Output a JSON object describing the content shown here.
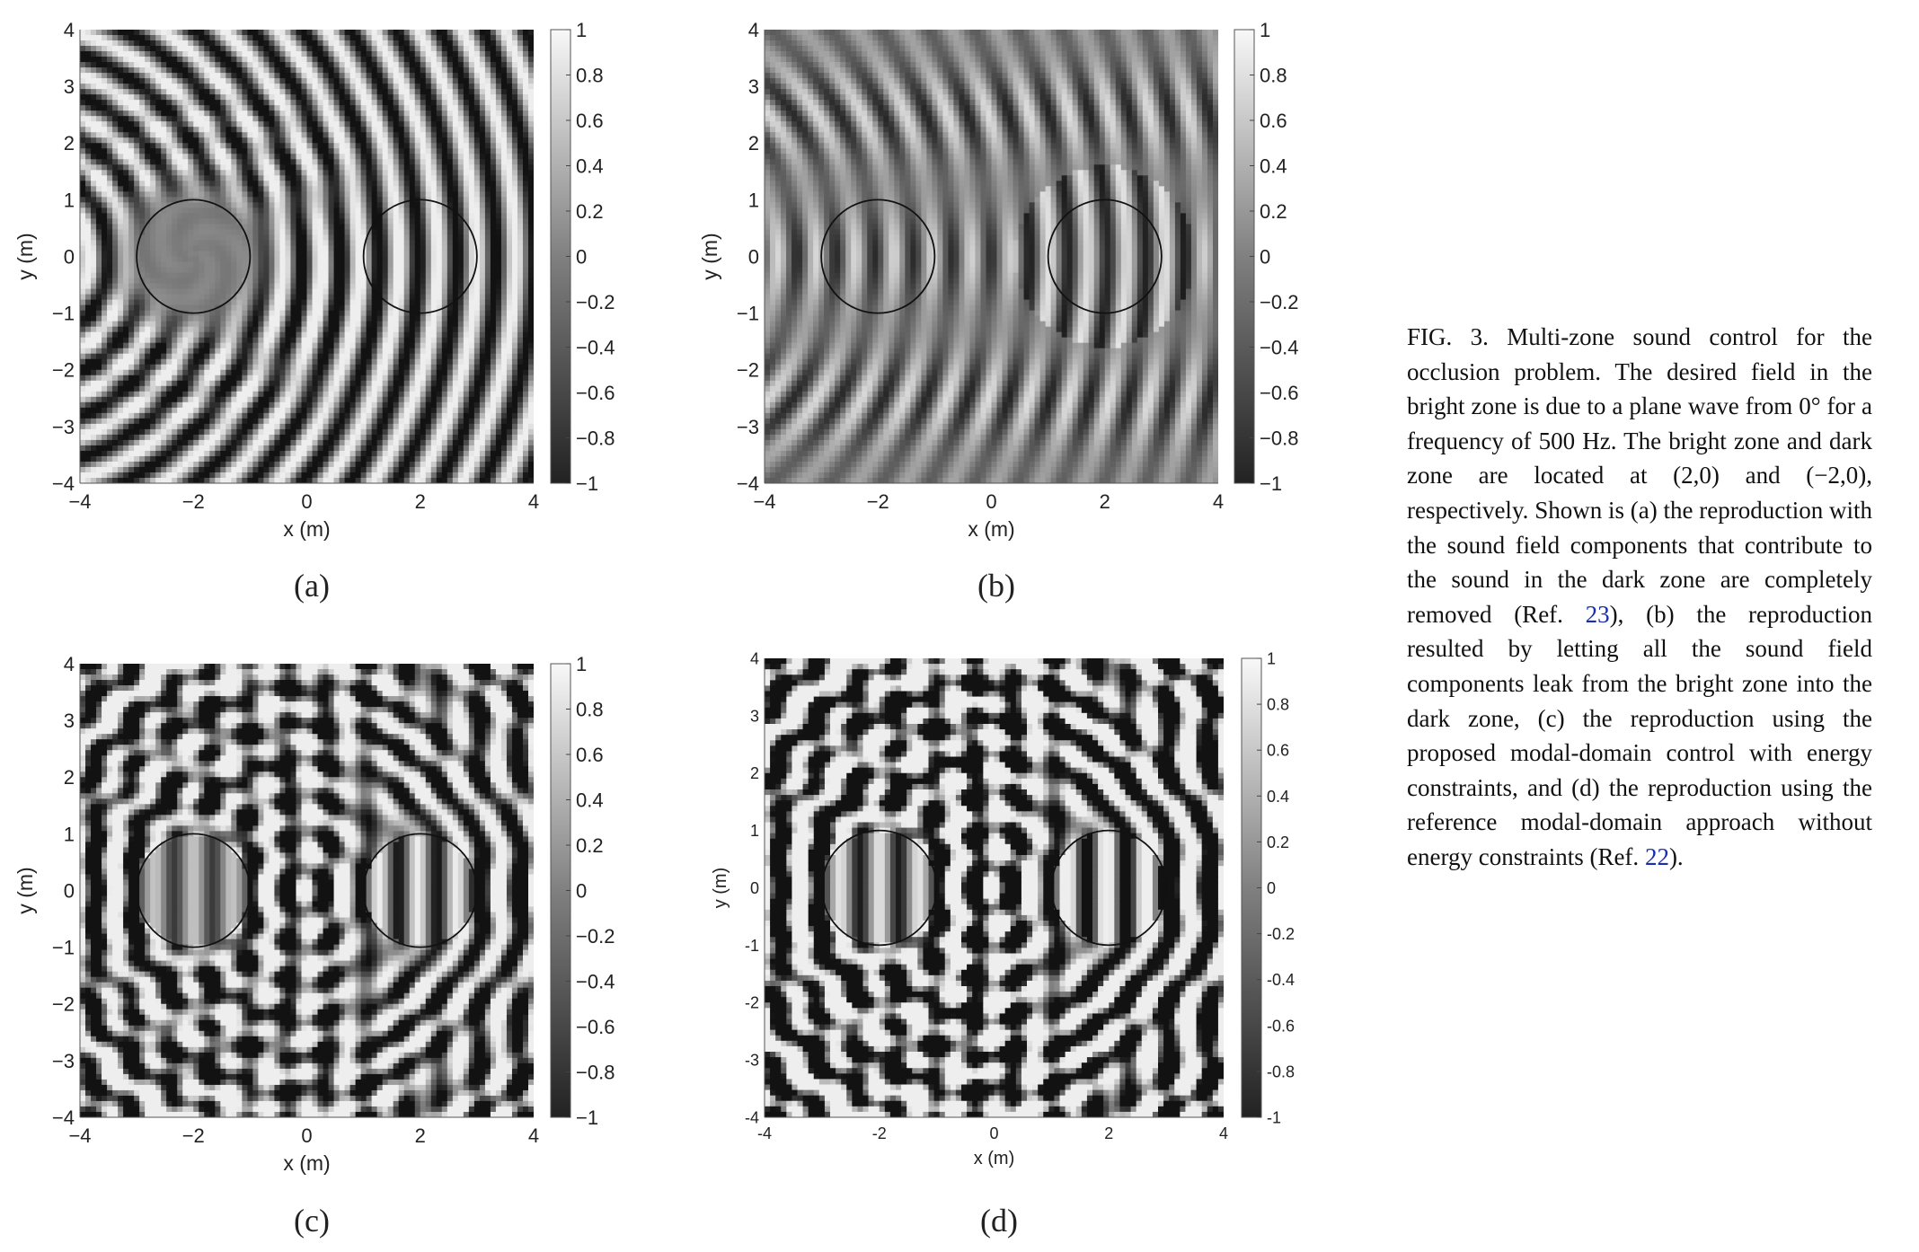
{
  "figure": {
    "caption": {
      "parts": [
        {
          "text": "FIG. 3. Multi-zone sound control for the occlusion problem. The desired field in the bright zone is due to a plane wave from 0° for a frequency of 500 Hz. The bright zone and dark zone are located at (2,0) and (−2,0), respectively. Shown is (a) the reproduction with the sound field components that contribute to the sound in the dark zone are completely removed (Ref. "
        },
        {
          "text": "23",
          "ref": true
        },
        {
          "text": "), (b) the reproduction resulted by letting all the sound field components leak from the bright zone into the dark zone, (c) the reproduction using the proposed modal-domain control with energy constraints, and (d) the reproduction using the reference modal-domain approach without energy constraints (Ref. "
        },
        {
          "text": "22",
          "ref": true
        },
        {
          "text": ")."
        }
      ]
    }
  },
  "chart_data": [
    {
      "type": "heatmap",
      "label": "(a)",
      "xlabel": "x (m)",
      "ylabel": "y (m)",
      "xlim": [
        -4,
        4
      ],
      "ylim": [
        -4,
        4
      ],
      "xticks": [
        "−4",
        "−2",
        "0",
        "2",
        "4"
      ],
      "yticks": [
        "4",
        "3",
        "2",
        "1",
        "0",
        "−1",
        "−2",
        "−3",
        "−4"
      ],
      "colorbar": {
        "range": [
          -1,
          1
        ],
        "ticks": [
          "1",
          "0.8",
          "0.6",
          "0.4",
          "0.2",
          "0",
          "−0.2",
          "−0.4",
          "−0.6",
          "−0.8",
          "−1"
        ],
        "colormap": "gray"
      },
      "zones": [
        {
          "name": "dark zone",
          "center": [
            -2,
            0
          ],
          "radius": 1
        },
        {
          "name": "bright zone",
          "center": [
            2,
            0
          ],
          "radius": 1
        }
      ]
    },
    {
      "type": "heatmap",
      "label": "(b)",
      "xlabel": "x (m)",
      "ylabel": "y (m)",
      "xlim": [
        -4,
        4
      ],
      "ylim": [
        -4,
        4
      ],
      "xticks": [
        "−4",
        "−2",
        "0",
        "2",
        "4"
      ],
      "yticks": [
        "4",
        "3",
        "2",
        "1",
        "0",
        "−1",
        "−2",
        "−3",
        "−4"
      ],
      "colorbar": {
        "range": [
          -1,
          1
        ],
        "ticks": [
          "1",
          "0.8",
          "0.6",
          "0.4",
          "0.2",
          "0",
          "−0.2",
          "−0.4",
          "−0.6",
          "−0.8",
          "−1"
        ],
        "colormap": "gray"
      },
      "zones": [
        {
          "name": "dark zone",
          "center": [
            -2,
            0
          ],
          "radius": 1
        },
        {
          "name": "bright zone",
          "center": [
            2,
            0
          ],
          "radius": 1
        }
      ]
    },
    {
      "type": "heatmap",
      "label": "(c)",
      "xlabel": "x (m)",
      "ylabel": "y (m)",
      "xlim": [
        -4,
        4
      ],
      "ylim": [
        -4,
        4
      ],
      "xticks": [
        "−4",
        "−2",
        "0",
        "2",
        "4"
      ],
      "yticks": [
        "4",
        "3",
        "2",
        "1",
        "0",
        "−1",
        "−2",
        "−3",
        "−4"
      ],
      "colorbar": {
        "range": [
          -1,
          1
        ],
        "ticks": [
          "1",
          "0.8",
          "0.6",
          "0.4",
          "0.2",
          "0",
          "−0.2",
          "−0.4",
          "−0.6",
          "−0.8",
          "−1"
        ],
        "colormap": "gray"
      },
      "zones": [
        {
          "name": "dark zone",
          "center": [
            -2,
            0
          ],
          "radius": 1
        },
        {
          "name": "bright zone",
          "center": [
            2,
            0
          ],
          "radius": 1
        }
      ]
    },
    {
      "type": "heatmap",
      "label": "(d)",
      "xlabel": "x (m)",
      "ylabel": "y (m)",
      "xlim": [
        -4,
        4
      ],
      "ylim": [
        -4,
        4
      ],
      "xticks": [
        "-4",
        "-2",
        "0",
        "2",
        "4"
      ],
      "yticks": [
        "4",
        "3",
        "2",
        "1",
        "0",
        "-1",
        "-2",
        "-3",
        "-4"
      ],
      "colorbar": {
        "range": [
          -1,
          1
        ],
        "ticks": [
          "1",
          "0.8",
          "0.6",
          "0.4",
          "0.2",
          "0",
          "-0.2",
          "-0.4",
          "-0.6",
          "-0.8",
          "-1"
        ],
        "colormap": "gray"
      },
      "zones": [
        {
          "name": "dark zone",
          "center": [
            -2,
            0
          ],
          "radius": 1
        },
        {
          "name": "bright zone",
          "center": [
            2,
            0
          ],
          "radius": 1
        }
      ]
    }
  ]
}
